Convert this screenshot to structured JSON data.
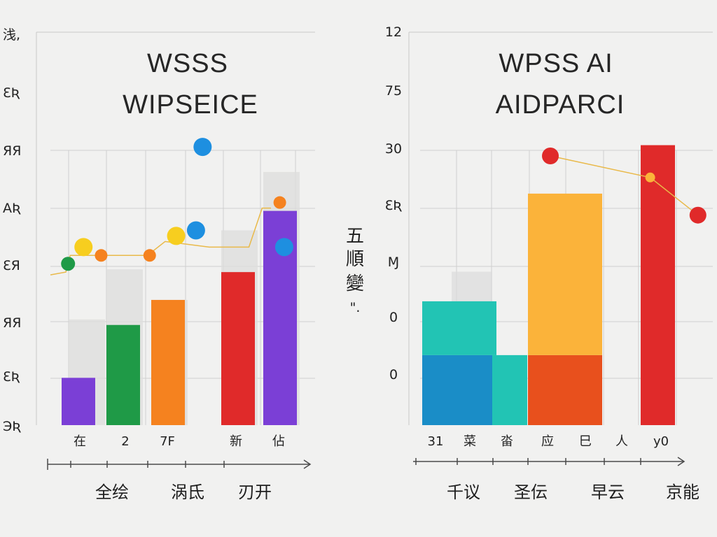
{
  "colors": {
    "background": "#f1f1f0",
    "grid": "#cfcfcf",
    "ghost_bar": "#dcdcdc",
    "purple": "#7b3fd6",
    "green": "#1f9a47",
    "orange": "#f5821f",
    "red": "#e02a2a",
    "teal": "#22c4b4",
    "blue": "#1a8dc7",
    "amber": "#fbb33a",
    "orange_red": "#e8501d",
    "yellow": "#f7ce1f",
    "sky_blue": "#1e8fe0",
    "connector": "#e9b949"
  },
  "side_label": [
    "五",
    "順",
    "變",
    "\"."
  ],
  "chart_data": [
    {
      "type": "bar",
      "title": [
        "WSSS",
        "WIPSEICE"
      ],
      "y_ticks": [
        "浅,",
        "ƐƦ",
        "ЯЯ",
        "AƦ",
        "ƐЯ",
        "ЯЯ",
        "ƐƦ",
        "ЭƦ"
      ],
      "grid": true,
      "ylim": [
        0,
        8
      ],
      "categories": [
        "在",
        "2",
        "7F",
        "",
        "新",
        "佔"
      ],
      "group_labels": [
        "全绘",
        "涡氐",
        "刃开"
      ],
      "series": [
        {
          "color": "purple",
          "values": [
            0.85,
            0,
            0,
            0,
            0,
            0
          ]
        },
        {
          "color": "green",
          "values": [
            0,
            1.8,
            0,
            0,
            0,
            0
          ]
        },
        {
          "color": "orange",
          "values": [
            0,
            0,
            2.25,
            0,
            0,
            0
          ]
        },
        {
          "color": "red",
          "values": [
            0,
            0,
            0,
            0,
            2.75,
            0
          ]
        },
        {
          "color": "purple",
          "values": [
            0,
            0,
            0,
            0,
            0,
            3.85
          ]
        }
      ],
      "ghost_values": [
        1.9,
        2.8,
        2.25,
        0,
        3.5,
        4.55
      ],
      "line_points": [
        {
          "x": 0,
          "y": 2.7
        },
        {
          "x": 0.35,
          "y": 2.75
        },
        {
          "x": 0.45,
          "y": 3.05
        },
        {
          "x": 1.3,
          "y": 3.05
        },
        {
          "x": 2.2,
          "y": 3.05
        },
        {
          "x": 2.6,
          "y": 3.3
        },
        {
          "x": 3.6,
          "y": 3.2
        },
        {
          "x": 4.5,
          "y": 3.2
        },
        {
          "x": 4.8,
          "y": 3.9
        },
        {
          "x": 5.0,
          "y": 3.9
        }
      ],
      "markers": [
        {
          "x": 0.4,
          "y": 2.9,
          "color": "green"
        },
        {
          "x": 0.75,
          "y": 3.2,
          "color": "yellow"
        },
        {
          "x": 1.15,
          "y": 3.05,
          "color": "orange"
        },
        {
          "x": 2.25,
          "y": 3.05,
          "color": "orange"
        },
        {
          "x": 2.85,
          "y": 3.4,
          "color": "yellow"
        },
        {
          "x": 3.3,
          "y": 3.5,
          "color": "sky_blue"
        },
        {
          "x": 3.45,
          "y": 5.0,
          "color": "sky_blue"
        },
        {
          "x": 5.2,
          "y": 4.0,
          "color": "orange"
        },
        {
          "x": 5.3,
          "y": 3.2,
          "color": "sky_blue"
        }
      ]
    },
    {
      "type": "bar",
      "title": [
        "WPSS AI",
        "AIDPARCI"
      ],
      "y_ticks": [
        "12",
        "75",
        "30",
        "ƐƦ",
        "Ɱ",
        "0",
        "0"
      ],
      "grid": true,
      "ylim": [
        0,
        7
      ],
      "categories": [
        "31",
        "菜",
        "畓",
        "应",
        "巳",
        "人",
        "у0"
      ],
      "group_labels": [
        "千议",
        "圣伝",
        "早云",
        "京能"
      ],
      "stacks": [
        {
          "segments": [
            {
              "color": "blue",
              "value": 1.3
            },
            {
              "color": "teal",
              "value": 1.0
            }
          ]
        },
        {
          "segments": [
            {
              "color": "teal",
              "value": 1.3
            }
          ]
        },
        {
          "segments": [
            {
              "color": "orange_red",
              "value": 1.3
            },
            {
              "color": "amber",
              "value": 3.0
            }
          ]
        },
        {
          "segments": [
            {
              "color": "red",
              "value": 5.2
            }
          ]
        }
      ],
      "ghost_values": [
        2.85,
        0,
        4.15,
        0
      ],
      "markers": [
        {
          "x": 3.0,
          "y": 5.0,
          "color": "red"
        },
        {
          "x": 5.3,
          "y": 4.6,
          "color": "amber"
        },
        {
          "x": 6.4,
          "y": 3.9,
          "color": "red"
        }
      ]
    }
  ]
}
